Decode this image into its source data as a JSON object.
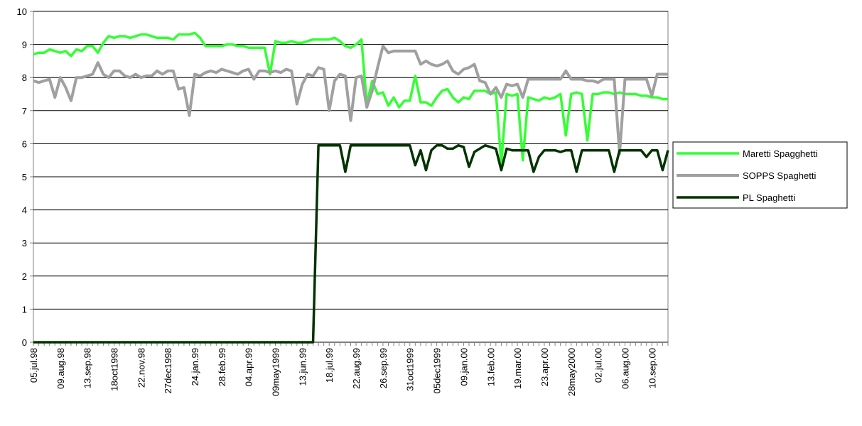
{
  "chart_data": {
    "type": "line",
    "categories": [
      "05.jul.98",
      null,
      null,
      null,
      null,
      "09.aug.98",
      null,
      null,
      null,
      null,
      "13.sep.98",
      null,
      null,
      null,
      null,
      "18oct1998",
      null,
      null,
      null,
      null,
      "22.nov.98",
      null,
      null,
      null,
      null,
      "27dec1998",
      null,
      null,
      null,
      null,
      "24.jan.99",
      null,
      null,
      null,
      null,
      "28.feb.99",
      null,
      null,
      null,
      null,
      "04.apr.99",
      null,
      null,
      null,
      null,
      "09may1999",
      null,
      null,
      null,
      null,
      "13.jun.99",
      null,
      null,
      null,
      null,
      "18.jul.99",
      null,
      null,
      null,
      null,
      "22.aug.99",
      null,
      null,
      null,
      null,
      "26.sep.99",
      null,
      null,
      null,
      null,
      "31oct1999",
      null,
      null,
      null,
      null,
      "05dec1999",
      null,
      null,
      null,
      null,
      "09.jan.00",
      null,
      null,
      null,
      null,
      "13.feb.00",
      null,
      null,
      null,
      null,
      "19.mar.00",
      null,
      null,
      null,
      null,
      "23.apr.00",
      null,
      null,
      null,
      null,
      "28may2000",
      null,
      null,
      null,
      null,
      "02.jul.00",
      null,
      null,
      null,
      null,
      "06.aug.00",
      null,
      null,
      null,
      null,
      "10.sep.00",
      null,
      null,
      null
    ],
    "series": [
      {
        "name": "Maretti Spagghetti",
        "color": "#33ff33",
        "values": [
          8.7,
          8.75,
          8.75,
          8.85,
          8.8,
          8.75,
          8.8,
          8.65,
          8.85,
          8.8,
          8.95,
          8.95,
          8.75,
          9.05,
          9.25,
          9.2,
          9.25,
          9.25,
          9.2,
          9.25,
          9.3,
          9.3,
          9.25,
          9.2,
          9.2,
          9.2,
          9.15,
          9.3,
          9.3,
          9.3,
          9.35,
          9.2,
          8.95,
          8.95,
          8.95,
          8.95,
          9.0,
          9.0,
          8.95,
          8.95,
          8.9,
          8.9,
          8.9,
          8.9,
          8.1,
          9.1,
          9.05,
          9.05,
          9.1,
          9.05,
          9.05,
          9.1,
          9.15,
          9.15,
          9.15,
          9.15,
          9.2,
          9.1,
          8.95,
          8.9,
          9.0,
          9.15,
          7.2,
          7.9,
          7.5,
          7.55,
          7.15,
          7.4,
          7.1,
          7.3,
          7.3,
          8.05,
          7.25,
          7.25,
          7.15,
          7.4,
          7.6,
          7.65,
          7.4,
          7.25,
          7.4,
          7.35,
          7.6,
          7.6,
          7.6,
          7.5,
          7.55,
          5.4,
          7.5,
          7.45,
          7.5,
          5.5,
          7.4,
          7.35,
          7.3,
          7.4,
          7.35,
          7.4,
          7.5,
          6.25,
          7.5,
          7.55,
          7.5,
          6.1,
          7.5,
          7.5,
          7.55,
          7.55,
          7.5,
          7.55,
          7.5,
          7.5,
          7.5,
          7.45,
          7.45,
          7.4,
          7.4,
          7.35,
          7.35
        ]
      },
      {
        "name": "SOPPS Spaghetti",
        "color": "#a0a0a0",
        "values": [
          7.9,
          7.85,
          7.9,
          7.95,
          7.4,
          8.0,
          7.7,
          7.3,
          8.0,
          8.0,
          8.05,
          8.1,
          8.45,
          8.1,
          8.0,
          8.2,
          8.2,
          8.05,
          8.0,
          8.1,
          8.0,
          8.05,
          8.05,
          8.2,
          8.1,
          8.2,
          8.2,
          7.65,
          7.7,
          6.85,
          8.1,
          8.05,
          8.15,
          8.2,
          8.15,
          8.25,
          8.2,
          8.15,
          8.1,
          8.2,
          8.25,
          7.95,
          8.2,
          8.2,
          8.15,
          8.2,
          8.15,
          8.25,
          8.2,
          7.2,
          7.8,
          8.1,
          8.05,
          8.3,
          8.25,
          7.0,
          7.9,
          8.1,
          8.05,
          6.7,
          8.0,
          8.05,
          7.1,
          7.6,
          8.3,
          8.95,
          8.75,
          8.8,
          8.8,
          8.8,
          8.8,
          8.8,
          8.4,
          8.5,
          8.4,
          8.35,
          8.4,
          8.5,
          8.2,
          8.1,
          8.25,
          8.3,
          8.4,
          7.9,
          7.85,
          7.5,
          7.7,
          7.4,
          7.8,
          7.75,
          7.8,
          7.4,
          7.95,
          7.95,
          7.95,
          7.95,
          7.95,
          7.95,
          7.95,
          8.2,
          7.95,
          7.95,
          7.95,
          7.9,
          7.9,
          7.85,
          7.95,
          7.95,
          7.95,
          5.7,
          7.95,
          7.95,
          7.95,
          7.95,
          7.95,
          7.45,
          8.1,
          8.1,
          8.1
        ]
      },
      {
        "name": "PL Spaghetti",
        "color": "#003300",
        "values": [
          0,
          0,
          0,
          0,
          0,
          0,
          0,
          0,
          0,
          0,
          0,
          0,
          0,
          0,
          0,
          0,
          0,
          0,
          0,
          0,
          0,
          0,
          0,
          0,
          0,
          0,
          0,
          0,
          0,
          0,
          0,
          0,
          0,
          0,
          0,
          0,
          0,
          0,
          0,
          0,
          0,
          0,
          0,
          0,
          0,
          0,
          0,
          0,
          0,
          0,
          0,
          0,
          0,
          5.95,
          5.95,
          5.95,
          5.95,
          5.95,
          5.15,
          5.95,
          5.95,
          5.95,
          5.95,
          5.95,
          5.95,
          5.95,
          5.95,
          5.95,
          5.95,
          5.95,
          5.95,
          5.35,
          5.8,
          5.2,
          5.8,
          5.95,
          5.95,
          5.85,
          5.85,
          5.95,
          5.9,
          5.3,
          5.75,
          5.85,
          5.95,
          5.9,
          5.85,
          5.2,
          5.85,
          5.8,
          5.8,
          5.8,
          5.8,
          5.15,
          5.6,
          5.8,
          5.8,
          5.8,
          5.75,
          5.8,
          5.8,
          5.15,
          5.8,
          5.8,
          5.8,
          5.8,
          5.8,
          5.8,
          5.15,
          5.8,
          5.8,
          5.8,
          5.8,
          5.8,
          5.6,
          5.8,
          5.8,
          5.2,
          5.8
        ]
      }
    ],
    "ylim": [
      0,
      10
    ],
    "yticks": [
      0,
      1,
      2,
      3,
      4,
      5,
      6,
      7,
      8,
      9,
      10
    ],
    "grid": true,
    "legend": "right"
  }
}
